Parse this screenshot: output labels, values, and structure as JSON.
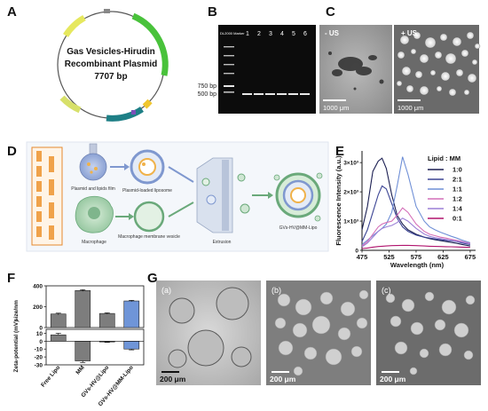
{
  "panels": {
    "A": {
      "label": "A",
      "plasmid_title_1": "Gas Vesicles-Hirudin",
      "plasmid_title_2": "Recombinant Plasmid",
      "plasmid_size": "7707 bp"
    },
    "B": {
      "label": "B",
      "lanes": [
        "DL2000 Marker",
        "1",
        "2",
        "3",
        "4",
        "5",
        "6"
      ],
      "markers": [
        "750 bp",
        "500 bp"
      ]
    },
    "C": {
      "label": "C",
      "left_tag": "- US",
      "right_tag": "+ US",
      "scale_left": "1000 μm",
      "scale_right": "1000 μm"
    },
    "D": {
      "label": "D",
      "labels": {
        "film": "Plasmid and lipids film",
        "liposome": "Plasmid-loaded liposome",
        "macrophage": "Macrophage",
        "mm_vesicle": "Macrophage membrane vesicle",
        "extrusion": "Extrusion",
        "product": "GVs-HV@MM-Lipo"
      }
    },
    "E": {
      "label": "E",
      "ylabel": "Fluorescence Intensity (a.u.)",
      "xlabel": "Wavelength (nm)",
      "legend_title": "Lipid : MM"
    },
    "F": {
      "label": "F",
      "ylabel_top": "size/nm",
      "ylabel_bottom": "Zeta-potential (mV)"
    },
    "G": {
      "label": "G",
      "sub_a": "(a)",
      "sub_b": "(b)",
      "sub_c": "(c)",
      "scale": "200 μm"
    }
  },
  "chart_data": [
    {
      "panel": "E",
      "type": "line",
      "title": "",
      "xlabel": "Wavelength (nm)",
      "ylabel": "Fluorescence Intensity (a.u.)",
      "xlim": [
        475,
        685
      ],
      "ylim": [
        0,
        3400
      ],
      "x_ticks": [
        475,
        525,
        575,
        625,
        675
      ],
      "y_ticks": [
        {
          "value": 0,
          "label": "0"
        },
        {
          "value": 1000,
          "label": "1×10³"
        },
        {
          "value": 2000,
          "label": "2×10³"
        },
        {
          "value": 3000,
          "label": "3×10³"
        }
      ],
      "legend_title": "Lipid : MM",
      "x": [
        475,
        485,
        495,
        505,
        512,
        520,
        530,
        540,
        550,
        560,
        575,
        590,
        600,
        610,
        620,
        630,
        640,
        650,
        660,
        675
      ],
      "series": [
        {
          "name": "1:0",
          "color": "#1b1f52",
          "values": [
            700,
            1500,
            2700,
            3050,
            3150,
            2800,
            1900,
            1200,
            900,
            700,
            550,
            450,
            400,
            360,
            330,
            300,
            270,
            240,
            200,
            150
          ]
        },
        {
          "name": "2:1",
          "color": "#3b4494",
          "values": [
            300,
            700,
            1300,
            1900,
            2200,
            2100,
            1600,
            1100,
            800,
            650,
            520,
            450,
            420,
            390,
            360,
            340,
            320,
            300,
            250,
            200
          ]
        },
        {
          "name": "1:1",
          "color": "#6f8fd6",
          "values": [
            200,
            350,
            500,
            650,
            750,
            900,
            1300,
            2200,
            3200,
            2600,
            1500,
            1000,
            800,
            700,
            620,
            550,
            480,
            420,
            350,
            260
          ]
        },
        {
          "name": "1:2",
          "color": "#d46fb8",
          "values": [
            150,
            300,
            550,
            800,
            900,
            950,
            1000,
            1200,
            1450,
            1300,
            900,
            650,
            550,
            500,
            450,
            420,
            380,
            340,
            300,
            240
          ]
        },
        {
          "name": "1:4",
          "color": "#9b7fd6",
          "values": [
            120,
            250,
            450,
            650,
            750,
            800,
            850,
            950,
            1100,
            1000,
            750,
            560,
            480,
            430,
            400,
            370,
            340,
            310,
            280,
            220
          ]
        },
        {
          "name": "0:1",
          "color": "#b0136d",
          "values": [
            60,
            80,
            110,
            130,
            140,
            150,
            160,
            165,
            170,
            170,
            160,
            150,
            140,
            135,
            130,
            125,
            120,
            115,
            110,
            100
          ]
        }
      ]
    },
    {
      "panel": "F",
      "type": "bar",
      "categories": [
        "Free Lipo",
        "MM",
        "GVs-HV@Lipo",
        "GVs-HV@MM-Lipo"
      ],
      "colors": [
        "#7d7d7d",
        "#7d7d7d",
        "#7d7d7d",
        "#6f95d8"
      ],
      "series": [
        {
          "values": [
            130,
            355,
            135,
            255
          ],
          "errors": [
            8,
            8,
            6,
            6
          ]
        },
        {
          "values": [
            8,
            -25,
            -1,
            -10
          ],
          "errors": [
            2,
            2,
            0.5,
            1
          ]
        }
      ],
      "ylim_top": [
        0,
        400
      ],
      "ylim_bottom": [
        -30,
        15
      ],
      "y_ticks_top": [
        0,
        200,
        400
      ],
      "y_ticks_bottom": [
        -30,
        -20,
        -10,
        0,
        10
      ],
      "ylabel_top": "size/nm",
      "ylabel_bottom": "Zeta-potential (mV)"
    }
  ]
}
